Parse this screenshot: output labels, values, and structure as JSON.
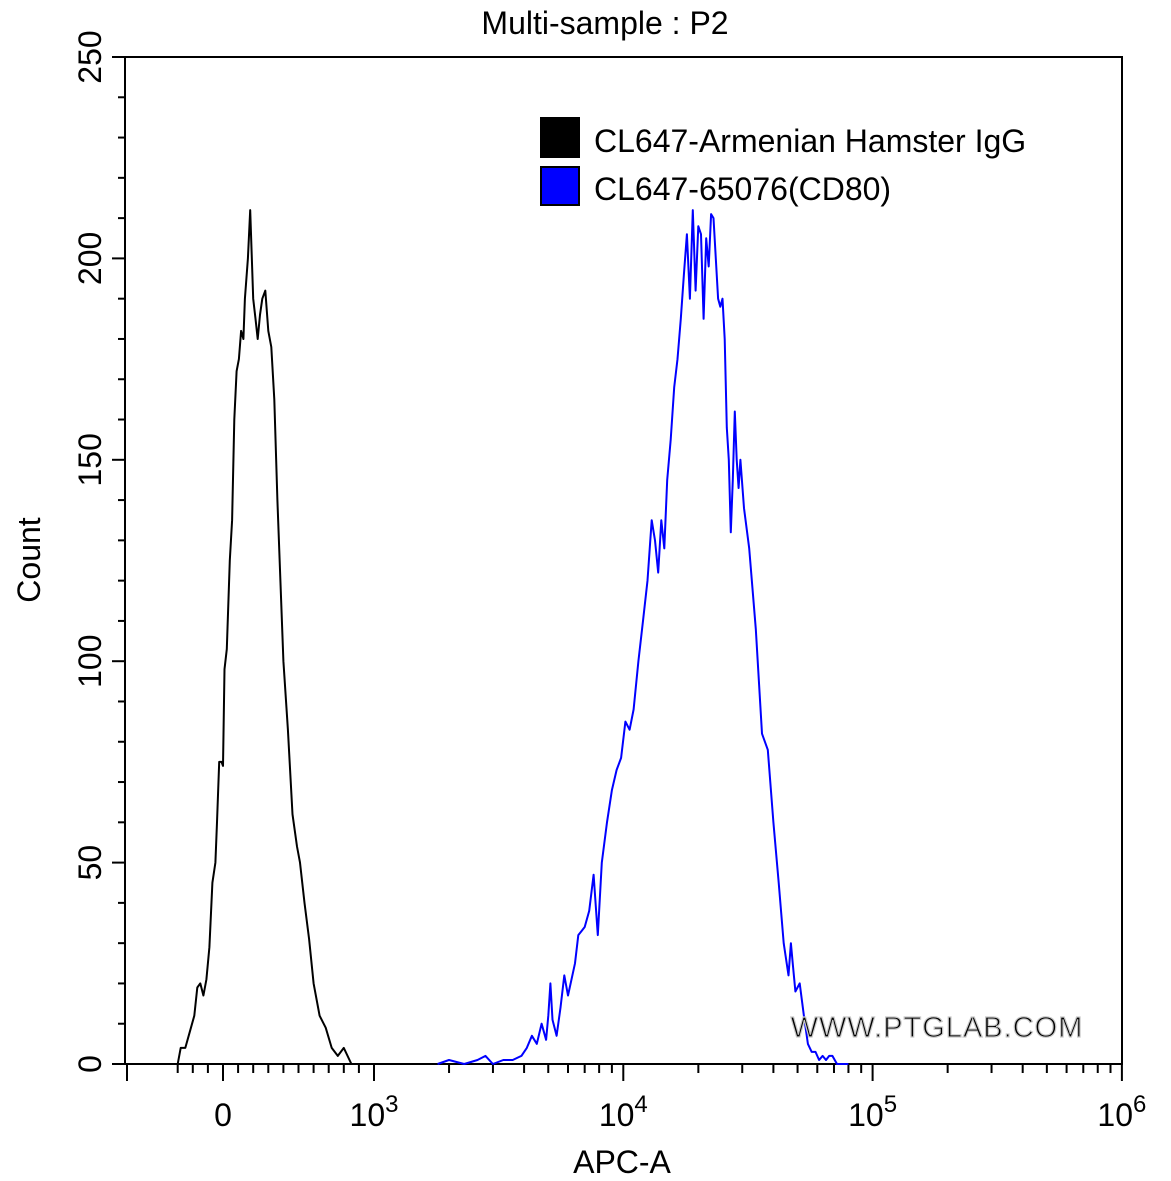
{
  "chart_data": {
    "type": "line",
    "title": "Multi-sample : P2",
    "xlabel": "APC-A",
    "ylabel": "Count",
    "ylim": [
      0,
      250
    ],
    "x_scale": "biexponential",
    "xlim": [
      -400,
      1000000
    ],
    "yticks": [
      {
        "value": 0,
        "label": "0"
      },
      {
        "value": 50,
        "label": "50"
      },
      {
        "value": 100,
        "label": "100"
      },
      {
        "value": 150,
        "label": "150"
      },
      {
        "value": 200,
        "label": "200"
      },
      {
        "value": 250,
        "label": "250"
      }
    ],
    "xticks": [
      {
        "value": 0,
        "base": "0",
        "exp": ""
      },
      {
        "value": 1000,
        "base": "10",
        "exp": "3"
      },
      {
        "value": 10000,
        "base": "10",
        "exp": "4"
      },
      {
        "value": 100000,
        "base": "10",
        "exp": "5"
      },
      {
        "value": 1000000,
        "base": "10",
        "exp": "6"
      }
    ],
    "legend_position": "top-right",
    "watermark": "WWW.PTGLAB.COM",
    "series": [
      {
        "name": "CL647-Armenian Hamster IgG",
        "color": "#000000",
        "points": [
          [
            -300,
            0
          ],
          [
            -280,
            4
          ],
          [
            -250,
            4
          ],
          [
            -220,
            8
          ],
          [
            -190,
            12
          ],
          [
            -170,
            19
          ],
          [
            -150,
            20
          ],
          [
            -130,
            17
          ],
          [
            -110,
            21
          ],
          [
            -90,
            29
          ],
          [
            -70,
            45
          ],
          [
            -50,
            50
          ],
          [
            -40,
            60
          ],
          [
            -25,
            75
          ],
          [
            -10,
            75
          ],
          [
            0,
            74
          ],
          [
            10,
            98
          ],
          [
            25,
            103
          ],
          [
            45,
            125
          ],
          [
            60,
            135
          ],
          [
            75,
            160
          ],
          [
            90,
            172
          ],
          [
            105,
            175
          ],
          [
            120,
            182
          ],
          [
            135,
            180
          ],
          [
            145,
            190
          ],
          [
            165,
            200
          ],
          [
            180,
            212
          ],
          [
            200,
            190
          ],
          [
            215,
            185
          ],
          [
            230,
            180
          ],
          [
            245,
            186
          ],
          [
            260,
            190
          ],
          [
            280,
            192
          ],
          [
            300,
            182
          ],
          [
            320,
            178
          ],
          [
            340,
            165
          ],
          [
            360,
            140
          ],
          [
            380,
            120
          ],
          [
            400,
            100
          ],
          [
            430,
            83
          ],
          [
            460,
            62
          ],
          [
            490,
            54
          ],
          [
            510,
            50
          ],
          [
            540,
            40
          ],
          [
            570,
            31
          ],
          [
            600,
            20
          ],
          [
            640,
            12
          ],
          [
            680,
            9
          ],
          [
            720,
            4
          ],
          [
            760,
            2
          ],
          [
            800,
            4
          ],
          [
            850,
            0
          ],
          [
            900,
            0
          ],
          [
            1000,
            0
          ]
        ]
      },
      {
        "name": "CL647-65076(CD80)",
        "color": "#0000ff",
        "points": [
          [
            1800,
            0
          ],
          [
            2000,
            1
          ],
          [
            2300,
            0
          ],
          [
            2600,
            1
          ],
          [
            2800,
            2
          ],
          [
            3000,
            0
          ],
          [
            3300,
            1
          ],
          [
            3600,
            1
          ],
          [
            3900,
            2
          ],
          [
            4100,
            4
          ],
          [
            4300,
            7
          ],
          [
            4500,
            5
          ],
          [
            4700,
            10
          ],
          [
            4900,
            6
          ],
          [
            5000,
            12
          ],
          [
            5100,
            20
          ],
          [
            5200,
            11
          ],
          [
            5400,
            7
          ],
          [
            5600,
            14
          ],
          [
            5800,
            22
          ],
          [
            6000,
            17
          ],
          [
            6200,
            21
          ],
          [
            6400,
            25
          ],
          [
            6600,
            32
          ],
          [
            6800,
            33
          ],
          [
            7000,
            34
          ],
          [
            7300,
            38
          ],
          [
            7600,
            47
          ],
          [
            7900,
            32
          ],
          [
            8200,
            50
          ],
          [
            8600,
            60
          ],
          [
            9000,
            68
          ],
          [
            9400,
            73
          ],
          [
            9800,
            76
          ],
          [
            10200,
            85
          ],
          [
            10600,
            83
          ],
          [
            11000,
            88
          ],
          [
            11500,
            100
          ],
          [
            12000,
            110
          ],
          [
            12500,
            120
          ],
          [
            13000,
            135
          ],
          [
            13400,
            130
          ],
          [
            13800,
            122
          ],
          [
            14200,
            135
          ],
          [
            14600,
            128
          ],
          [
            15000,
            145
          ],
          [
            15500,
            155
          ],
          [
            16000,
            168
          ],
          [
            16500,
            175
          ],
          [
            17000,
            185
          ],
          [
            17500,
            196
          ],
          [
            18000,
            206
          ],
          [
            18500,
            190
          ],
          [
            19000,
            212
          ],
          [
            19500,
            192
          ],
          [
            20000,
            208
          ],
          [
            20500,
            206
          ],
          [
            21000,
            185
          ],
          [
            21500,
            205
          ],
          [
            22000,
            198
          ],
          [
            22500,
            211
          ],
          [
            23000,
            210
          ],
          [
            23500,
            200
          ],
          [
            24000,
            190
          ],
          [
            24500,
            188
          ],
          [
            25000,
            190
          ],
          [
            25500,
            180
          ],
          [
            26000,
            158
          ],
          [
            26500,
            150
          ],
          [
            27000,
            132
          ],
          [
            27500,
            145
          ],
          [
            28000,
            162
          ],
          [
            28500,
            150
          ],
          [
            29000,
            143
          ],
          [
            29500,
            150
          ],
          [
            30500,
            138
          ],
          [
            32000,
            128
          ],
          [
            34000,
            108
          ],
          [
            36000,
            82
          ],
          [
            38000,
            78
          ],
          [
            40000,
            60
          ],
          [
            42000,
            45
          ],
          [
            44000,
            30
          ],
          [
            46000,
            22
          ],
          [
            47000,
            30
          ],
          [
            48000,
            24
          ],
          [
            49000,
            18
          ],
          [
            51000,
            20
          ],
          [
            53000,
            12
          ],
          [
            55000,
            5
          ],
          [
            57000,
            3
          ],
          [
            59000,
            3
          ],
          [
            61000,
            1
          ],
          [
            63000,
            2
          ],
          [
            65000,
            1
          ],
          [
            67000,
            2
          ],
          [
            69000,
            2
          ],
          [
            72000,
            0
          ],
          [
            80000,
            0
          ]
        ]
      }
    ]
  }
}
